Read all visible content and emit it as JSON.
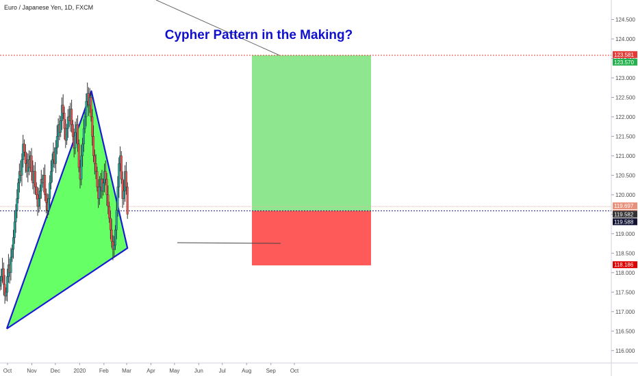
{
  "header": {
    "symbol": "Euro / Japanese Yen, 1D, FXCM"
  },
  "annotation": {
    "title": "Cypher Pattern in the Making?"
  },
  "colors": {
    "up_candle": "#26a69a",
    "down_candle": "#ef5350",
    "wick": "#333333",
    "pattern_fill": "#66ff66",
    "pattern_outline": "#1a1ad6",
    "profit_zone": "#8ee68e",
    "loss_zone": "#ff5a5a",
    "target_line": "#e53935",
    "current_line": "#1a1a6e"
  },
  "chart_data": {
    "type": "candlestick",
    "title": "Cypher Pattern in the Making?",
    "symbol": "Euro / Japanese Yen, 1D, FXCM",
    "x_ticks": [
      "Oct",
      "Nov",
      "Dec",
      "2020",
      "Feb",
      "Mar",
      "Apr",
      "May",
      "Jun",
      "Jul",
      "Aug",
      "Sep",
      "Oct"
    ],
    "y_ticks": [
      "116.000",
      "116.500",
      "117.000",
      "117.500",
      "118.000",
      "118.500",
      "119.000",
      "119.500",
      "120.000",
      "120.500",
      "121.000",
      "121.500",
      "122.000",
      "122.500",
      "123.000",
      "123.500",
      "124.000",
      "124.500"
    ],
    "ylim": [
      115.68,
      125.0
    ],
    "price_labels": [
      {
        "value": "123.581",
        "color": "#e53935"
      },
      {
        "value": "123.570",
        "color": "#22b14c"
      },
      {
        "value": "119.697",
        "color": "#e8907a"
      },
      {
        "value": "04:16:28",
        "color": "#e8907a"
      },
      {
        "value": "119.582",
        "color": "#333333"
      },
      {
        "value": "119.588",
        "color": "#111133"
      },
      {
        "value": "118.186",
        "color": "#e00000"
      }
    ],
    "pattern_points": [
      {
        "date": "2019-09-30",
        "price": 116.56
      },
      {
        "date": "2020-01-16",
        "price": 122.66
      },
      {
        "date": "2020-03-02",
        "price": 118.63
      }
    ],
    "position": {
      "entry": 119.588,
      "target": 123.581,
      "stop": 118.186,
      "start_date": "2020-03-03",
      "end_date": "2020-05-18"
    },
    "series": [
      {
        "values": [
          117.8,
          117.9,
          118.1,
          117.7,
          117.4,
          117.5,
          117.9,
          118.2,
          118.0,
          118.4,
          118.6,
          118.9,
          119.3,
          119.6,
          119.9,
          120.3,
          120.6,
          120.5,
          120.9,
          121.3,
          121.1,
          120.8,
          120.6,
          120.9,
          120.7,
          121.0,
          120.6,
          120.3,
          120.6,
          120.2,
          120.0,
          119.7,
          119.9,
          120.1,
          120.4,
          120.3,
          120.5,
          120.0,
          119.8,
          119.6,
          119.9,
          120.3,
          120.6,
          120.9,
          121.1,
          120.8,
          121.2,
          121.5,
          121.8,
          121.6,
          121.9,
          122.3,
          122.1,
          121.7,
          121.4,
          121.7,
          122.0,
          121.9,
          122.2,
          121.8,
          121.5,
          121.2,
          121.6,
          121.8,
          121.3,
          120.7,
          120.4,
          121.0,
          121.3,
          121.7,
          122.0,
          122.4,
          122.6,
          122.3,
          122.5,
          122.0,
          121.5,
          121.0,
          120.8,
          120.6,
          120.2,
          119.9,
          120.2,
          120.4,
          120.1,
          120.3,
          120.6,
          120.4,
          120.0,
          119.7,
          119.4,
          119.1,
          118.8,
          118.6,
          118.7,
          119.1,
          119.6,
          120.2,
          120.8,
          121.0,
          120.4,
          119.9,
          120.1,
          120.6,
          120.2,
          119.5
        ]
      }
    ]
  }
}
